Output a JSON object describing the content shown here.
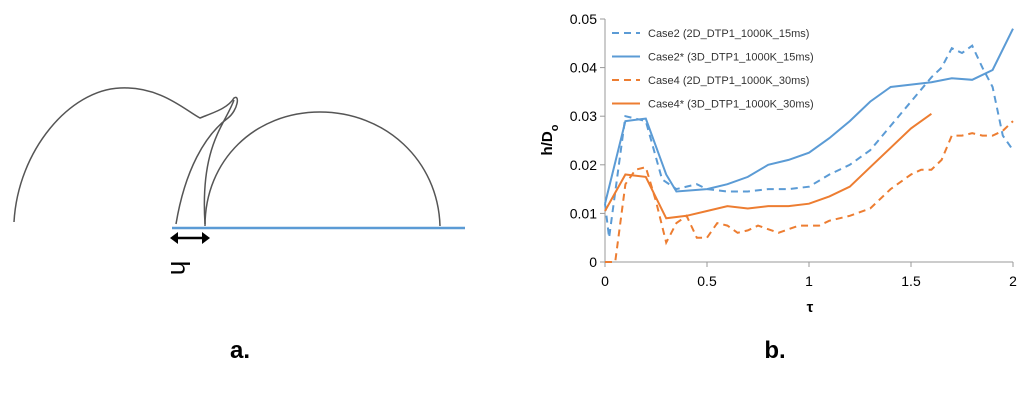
{
  "panel_a": {
    "dimension_label": "h",
    "caption": "a."
  },
  "chart_data": {
    "type": "line",
    "caption": "b.",
    "x_label": "τ",
    "y_label": "h/D",
    "y_label_sub": "o",
    "xlim": [
      0,
      2
    ],
    "xticks": [
      0,
      0.5,
      1,
      1.5,
      2
    ],
    "ylim": [
      0,
      0.05
    ],
    "yticks": [
      0,
      0.01,
      0.02,
      0.03,
      0.04,
      0.05
    ],
    "legend": "upper left",
    "grid": false,
    "series": [
      {
        "name": "Case2 (2D_DTP1_1000K_15ms)",
        "color": "#5b9bd5",
        "style": "dashed",
        "x": [
          0,
          0.02,
          0.1,
          0.2,
          0.28,
          0.35,
          0.45,
          0.5,
          0.6,
          0.7,
          0.8,
          0.9,
          1.0,
          1.1,
          1.2,
          1.3,
          1.4,
          1.5,
          1.6,
          1.65,
          1.7,
          1.75,
          1.8,
          1.85,
          1.9,
          1.95,
          2.0
        ],
        "values": [
          0.012,
          0.005,
          0.03,
          0.029,
          0.017,
          0.015,
          0.016,
          0.015,
          0.0145,
          0.0145,
          0.015,
          0.015,
          0.0155,
          0.018,
          0.02,
          0.023,
          0.028,
          0.033,
          0.038,
          0.04,
          0.044,
          0.043,
          0.0445,
          0.04,
          0.036,
          0.026,
          0.023
        ]
      },
      {
        "name": "Case2* (3D_DTP1_1000K_15ms)",
        "color": "#5b9bd5",
        "style": "solid",
        "x": [
          0,
          0.1,
          0.2,
          0.3,
          0.35,
          0.5,
          0.6,
          0.7,
          0.8,
          0.9,
          1.0,
          1.1,
          1.2,
          1.3,
          1.4,
          1.5,
          1.6,
          1.7,
          1.8,
          1.9,
          2.0
        ],
        "values": [
          0.012,
          0.029,
          0.0295,
          0.018,
          0.0145,
          0.015,
          0.016,
          0.0175,
          0.02,
          0.021,
          0.0225,
          0.0255,
          0.029,
          0.033,
          0.036,
          0.0365,
          0.037,
          0.0378,
          0.0375,
          0.0395,
          0.048
        ]
      },
      {
        "name": "Case4 (2D_DTP1_1000K_30ms)",
        "color": "#ed7d31",
        "style": "dashed",
        "x": [
          0,
          0.05,
          0.1,
          0.15,
          0.2,
          0.25,
          0.3,
          0.35,
          0.4,
          0.45,
          0.5,
          0.55,
          0.6,
          0.65,
          0.7,
          0.75,
          0.85,
          0.95,
          1.05,
          1.1,
          1.2,
          1.3,
          1.4,
          1.5,
          1.55,
          1.6,
          1.65,
          1.7,
          1.75,
          1.8,
          1.85,
          1.9,
          1.95,
          2.0
        ],
        "values": [
          0,
          0,
          0.016,
          0.019,
          0.0195,
          0.0125,
          0.004,
          0.008,
          0.0095,
          0.005,
          0.005,
          0.008,
          0.0075,
          0.006,
          0.0065,
          0.0075,
          0.006,
          0.0075,
          0.0075,
          0.0085,
          0.0095,
          0.011,
          0.015,
          0.018,
          0.019,
          0.019,
          0.021,
          0.026,
          0.026,
          0.0265,
          0.026,
          0.026,
          0.027,
          0.029
        ]
      },
      {
        "name": "Case4* (3D_DTP1_1000K_30ms)",
        "color": "#ed7d31",
        "style": "solid",
        "x": [
          0,
          0.1,
          0.2,
          0.3,
          0.4,
          0.5,
          0.6,
          0.7,
          0.8,
          0.9,
          1.0,
          1.1,
          1.2,
          1.3,
          1.4,
          1.5,
          1.6
        ],
        "values": [
          0.0105,
          0.018,
          0.0175,
          0.009,
          0.0095,
          0.0105,
          0.0115,
          0.011,
          0.0115,
          0.0115,
          0.012,
          0.0135,
          0.0155,
          0.0195,
          0.0235,
          0.0275,
          0.0305
        ]
      }
    ]
  }
}
